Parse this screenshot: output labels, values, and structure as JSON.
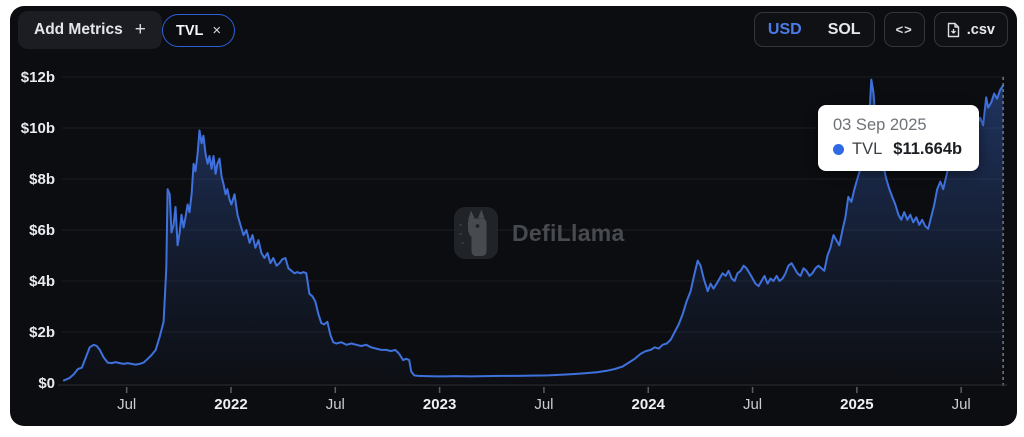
{
  "header": {
    "add_metrics_label": "Add Metrics",
    "add_metrics_plus": "+",
    "metric_pill": {
      "label": "TVL",
      "close": "×"
    },
    "currency_toggle": {
      "options": [
        "USD",
        "SOL"
      ],
      "selected": "USD"
    },
    "embed_button_label": "<>",
    "csv_button_label": ".csv"
  },
  "watermark": {
    "text": "DefiLlama"
  },
  "tooltip": {
    "date": "03 Sep 2025",
    "series": "TVL",
    "value": "$11.664b"
  },
  "colors": {
    "accent_blue": "#3f71dd",
    "usd_selected": "#4a7be6",
    "tooltip_dot": "#2e6ae3",
    "pill_border": "#2e62d8",
    "card_bg": "#0c0d10"
  },
  "chart_data": {
    "type": "area",
    "title": "TVL",
    "series_name": "TVL",
    "unit": "USD billions",
    "x_unit": "decimal_year",
    "xlim": [
      2021.19,
      2025.71
    ],
    "ylim": [
      0,
      12
    ],
    "grid": "horizontal-faint",
    "legend": "none",
    "crosshair_t": 2025.701,
    "last_point": {
      "date": "03 Sep 2025",
      "value_b": 11.664
    },
    "y_ticks": [
      {
        "v": 0,
        "label": "$0"
      },
      {
        "v": 2,
        "label": "$2b"
      },
      {
        "v": 4,
        "label": "$4b"
      },
      {
        "v": 6,
        "label": "$6b"
      },
      {
        "v": 8,
        "label": "$8b"
      },
      {
        "v": 10,
        "label": "$10b"
      },
      {
        "v": 12,
        "label": "$12b"
      }
    ],
    "x_ticks": [
      {
        "t": 2021.5,
        "label": "Jul",
        "bold": false
      },
      {
        "t": 2022.0,
        "label": "2022",
        "bold": true
      },
      {
        "t": 2022.5,
        "label": "Jul",
        "bold": false
      },
      {
        "t": 2023.0,
        "label": "2023",
        "bold": true
      },
      {
        "t": 2023.5,
        "label": "Jul",
        "bold": false
      },
      {
        "t": 2024.0,
        "label": "2024",
        "bold": true
      },
      {
        "t": 2024.5,
        "label": "Jul",
        "bold": false
      },
      {
        "t": 2025.0,
        "label": "2025",
        "bold": true
      },
      {
        "t": 2025.5,
        "label": "Jul",
        "bold": false
      }
    ],
    "points": [
      [
        2021.199,
        0.1
      ],
      [
        2021.227,
        0.2
      ],
      [
        2021.247,
        0.35
      ],
      [
        2021.266,
        0.55
      ],
      [
        2021.285,
        0.6
      ],
      [
        2021.304,
        1.0
      ],
      [
        2021.323,
        1.4
      ],
      [
        2021.342,
        1.5
      ],
      [
        2021.357,
        1.45
      ],
      [
        2021.371,
        1.3
      ],
      [
        2021.39,
        1.0
      ],
      [
        2021.409,
        0.8
      ],
      [
        2021.428,
        0.78
      ],
      [
        2021.447,
        0.82
      ],
      [
        2021.467,
        0.78
      ],
      [
        2021.486,
        0.75
      ],
      [
        2021.505,
        0.78
      ],
      [
        2021.524,
        0.75
      ],
      [
        2021.543,
        0.72
      ],
      [
        2021.562,
        0.75
      ],
      [
        2021.581,
        0.8
      ],
      [
        2021.601,
        0.95
      ],
      [
        2021.62,
        1.1
      ],
      [
        2021.639,
        1.3
      ],
      [
        2021.658,
        1.8
      ],
      [
        2021.677,
        2.4
      ],
      [
        2021.69,
        4.5
      ],
      [
        2021.696,
        7.6
      ],
      [
        2021.706,
        7.4
      ],
      [
        2021.715,
        5.9
      ],
      [
        2021.725,
        6.2
      ],
      [
        2021.734,
        6.9
      ],
      [
        2021.744,
        5.4
      ],
      [
        2021.754,
        5.9
      ],
      [
        2021.763,
        6.6
      ],
      [
        2021.773,
        6.1
      ],
      [
        2021.782,
        6.5
      ],
      [
        2021.792,
        7.0
      ],
      [
        2021.801,
        6.7
      ],
      [
        2021.811,
        7.4
      ],
      [
        2021.821,
        8.6
      ],
      [
        2021.83,
        8.3
      ],
      [
        2021.84,
        9.0
      ],
      [
        2021.849,
        9.9
      ],
      [
        2021.859,
        9.4
      ],
      [
        2021.868,
        9.7
      ],
      [
        2021.878,
        9.0
      ],
      [
        2021.888,
        8.6
      ],
      [
        2021.897,
        8.9
      ],
      [
        2021.907,
        8.4
      ],
      [
        2021.916,
        8.9
      ],
      [
        2021.926,
        8.2
      ],
      [
        2021.935,
        8.6
      ],
      [
        2021.945,
        8.8
      ],
      [
        2021.955,
        8.1
      ],
      [
        2021.964,
        7.8
      ],
      [
        2021.974,
        7.4
      ],
      [
        2021.983,
        7.6
      ],
      [
        2021.993,
        7.2
      ],
      [
        2022.002,
        7.0
      ],
      [
        2022.017,
        7.4
      ],
      [
        2022.031,
        6.6
      ],
      [
        2022.045,
        6.2
      ],
      [
        2022.06,
        5.8
      ],
      [
        2022.074,
        6.0
      ],
      [
        2022.089,
        5.5
      ],
      [
        2022.103,
        5.8
      ],
      [
        2022.117,
        5.3
      ],
      [
        2022.132,
        5.6
      ],
      [
        2022.146,
        5.1
      ],
      [
        2022.16,
        4.9
      ],
      [
        2022.175,
        5.1
      ],
      [
        2022.189,
        4.7
      ],
      [
        2022.203,
        4.9
      ],
      [
        2022.218,
        4.6
      ],
      [
        2022.232,
        4.7
      ],
      [
        2022.246,
        4.85
      ],
      [
        2022.261,
        4.9
      ],
      [
        2022.275,
        4.5
      ],
      [
        2022.29,
        4.4
      ],
      [
        2022.304,
        4.3
      ],
      [
        2022.318,
        4.35
      ],
      [
        2022.333,
        4.3
      ],
      [
        2022.347,
        4.35
      ],
      [
        2022.361,
        4.3
      ],
      [
        2022.376,
        3.5
      ],
      [
        2022.39,
        3.4
      ],
      [
        2022.404,
        3.2
      ],
      [
        2022.419,
        2.7
      ],
      [
        2022.433,
        2.35
      ],
      [
        2022.447,
        2.3
      ],
      [
        2022.462,
        2.4
      ],
      [
        2022.476,
        1.9
      ],
      [
        2022.49,
        1.6
      ],
      [
        2022.505,
        1.55
      ],
      [
        2022.529,
        1.6
      ],
      [
        2022.553,
        1.5
      ],
      [
        2022.577,
        1.55
      ],
      [
        2022.601,
        1.5
      ],
      [
        2022.624,
        1.45
      ],
      [
        2022.648,
        1.5
      ],
      [
        2022.672,
        1.4
      ],
      [
        2022.696,
        1.35
      ],
      [
        2022.72,
        1.3
      ],
      [
        2022.744,
        1.3
      ],
      [
        2022.768,
        1.25
      ],
      [
        2022.787,
        1.3
      ],
      [
        2022.806,
        1.15
      ],
      [
        2022.825,
        0.9
      ],
      [
        2022.84,
        0.95
      ],
      [
        2022.854,
        0.9
      ],
      [
        2022.864,
        0.45
      ],
      [
        2022.878,
        0.3
      ],
      [
        2022.897,
        0.28
      ],
      [
        2022.936,
        0.27
      ],
      [
        2022.983,
        0.26
      ],
      [
        2023.022,
        0.26
      ],
      [
        2023.079,
        0.27
      ],
      [
        2023.151,
        0.26
      ],
      [
        2023.222,
        0.27
      ],
      [
        2023.294,
        0.28
      ],
      [
        2023.366,
        0.28
      ],
      [
        2023.438,
        0.29
      ],
      [
        2023.519,
        0.3
      ],
      [
        2023.581,
        0.32
      ],
      [
        2023.639,
        0.35
      ],
      [
        2023.696,
        0.38
      ],
      [
        2023.754,
        0.42
      ],
      [
        2023.801,
        0.48
      ],
      [
        2023.84,
        0.55
      ],
      [
        2023.878,
        0.65
      ],
      [
        2023.907,
        0.8
      ],
      [
        2023.935,
        0.95
      ],
      [
        2023.964,
        1.15
      ],
      [
        2023.988,
        1.25
      ],
      [
        2024.012,
        1.3
      ],
      [
        2024.031,
        1.4
      ],
      [
        2024.05,
        1.35
      ],
      [
        2024.069,
        1.5
      ],
      [
        2024.089,
        1.55
      ],
      [
        2024.108,
        1.7
      ],
      [
        2024.127,
        2.0
      ],
      [
        2024.146,
        2.3
      ],
      [
        2024.165,
        2.7
      ],
      [
        2024.184,
        3.2
      ],
      [
        2024.203,
        3.6
      ],
      [
        2024.222,
        4.3
      ],
      [
        2024.237,
        4.8
      ],
      [
        2024.251,
        4.6
      ],
      [
        2024.266,
        4.1
      ],
      [
        2024.285,
        3.6
      ],
      [
        2024.299,
        3.9
      ],
      [
        2024.313,
        3.7
      ],
      [
        2024.328,
        3.9
      ],
      [
        2024.342,
        4.1
      ],
      [
        2024.356,
        4.3
      ],
      [
        2024.371,
        4.2
      ],
      [
        2024.385,
        4.4
      ],
      [
        2024.4,
        4.1
      ],
      [
        2024.414,
        4.0
      ],
      [
        2024.428,
        4.3
      ],
      [
        2024.443,
        4.4
      ],
      [
        2024.457,
        4.6
      ],
      [
        2024.471,
        4.5
      ],
      [
        2024.486,
        4.3
      ],
      [
        2024.5,
        4.1
      ],
      [
        2024.514,
        3.9
      ],
      [
        2024.529,
        3.8
      ],
      [
        2024.543,
        4.0
      ],
      [
        2024.557,
        4.2
      ],
      [
        2024.572,
        3.9
      ],
      [
        2024.586,
        4.1
      ],
      [
        2024.6,
        4.0
      ],
      [
        2024.615,
        4.2
      ],
      [
        2024.629,
        4.0
      ],
      [
        2024.644,
        4.1
      ],
      [
        2024.658,
        4.3
      ],
      [
        2024.672,
        4.6
      ],
      [
        2024.687,
        4.7
      ],
      [
        2024.701,
        4.5
      ],
      [
        2024.715,
        4.3
      ],
      [
        2024.73,
        4.2
      ],
      [
        2024.744,
        4.5
      ],
      [
        2024.758,
        4.4
      ],
      [
        2024.773,
        4.2
      ],
      [
        2024.787,
        4.3
      ],
      [
        2024.801,
        4.5
      ],
      [
        2024.816,
        4.6
      ],
      [
        2024.83,
        4.5
      ],
      [
        2024.844,
        4.4
      ],
      [
        2024.859,
        5.0
      ],
      [
        2024.873,
        5.3
      ],
      [
        2024.888,
        5.8
      ],
      [
        2024.902,
        5.6
      ],
      [
        2024.916,
        5.4
      ],
      [
        2024.931,
        6.0
      ],
      [
        2024.945,
        6.5
      ],
      [
        2024.959,
        7.3
      ],
      [
        2024.974,
        7.1
      ],
      [
        2024.988,
        7.6
      ],
      [
        2025.002,
        8.0
      ],
      [
        2025.017,
        8.4
      ],
      [
        2025.031,
        8.7
      ],
      [
        2025.045,
        9.3
      ],
      [
        2025.06,
        10.5
      ],
      [
        2025.069,
        11.9
      ],
      [
        2025.079,
        11.4
      ],
      [
        2025.089,
        10.4
      ],
      [
        2025.098,
        9.8
      ],
      [
        2025.112,
        9.0
      ],
      [
        2025.127,
        8.5
      ],
      [
        2025.141,
        8.0
      ],
      [
        2025.156,
        7.6
      ],
      [
        2025.17,
        7.3
      ],
      [
        2025.184,
        7.0
      ],
      [
        2025.199,
        6.6
      ],
      [
        2025.213,
        6.4
      ],
      [
        2025.227,
        6.7
      ],
      [
        2025.242,
        6.4
      ],
      [
        2025.256,
        6.6
      ],
      [
        2025.27,
        6.3
      ],
      [
        2025.285,
        6.5
      ],
      [
        2025.299,
        6.2
      ],
      [
        2025.313,
        6.4
      ],
      [
        2025.328,
        6.15
      ],
      [
        2025.342,
        6.05
      ],
      [
        2025.356,
        6.5
      ],
      [
        2025.371,
        7.0
      ],
      [
        2025.385,
        7.6
      ],
      [
        2025.4,
        7.9
      ],
      [
        2025.414,
        7.6
      ],
      [
        2025.428,
        8.1
      ],
      [
        2025.443,
        8.6
      ],
      [
        2025.457,
        8.9
      ],
      [
        2025.471,
        8.6
      ],
      [
        2025.486,
        9.1
      ],
      [
        2025.5,
        9.0
      ],
      [
        2025.519,
        9.3
      ],
      [
        2025.533,
        9.6
      ],
      [
        2025.548,
        9.4
      ],
      [
        2025.562,
        9.9
      ],
      [
        2025.577,
        10.2
      ],
      [
        2025.591,
        10.4
      ],
      [
        2025.605,
        10.1
      ],
      [
        2025.62,
        11.2
      ],
      [
        2025.629,
        10.8
      ],
      [
        2025.644,
        11.0
      ],
      [
        2025.658,
        11.35
      ],
      [
        2025.672,
        11.15
      ],
      [
        2025.687,
        11.5
      ],
      [
        2025.701,
        11.664
      ]
    ]
  }
}
